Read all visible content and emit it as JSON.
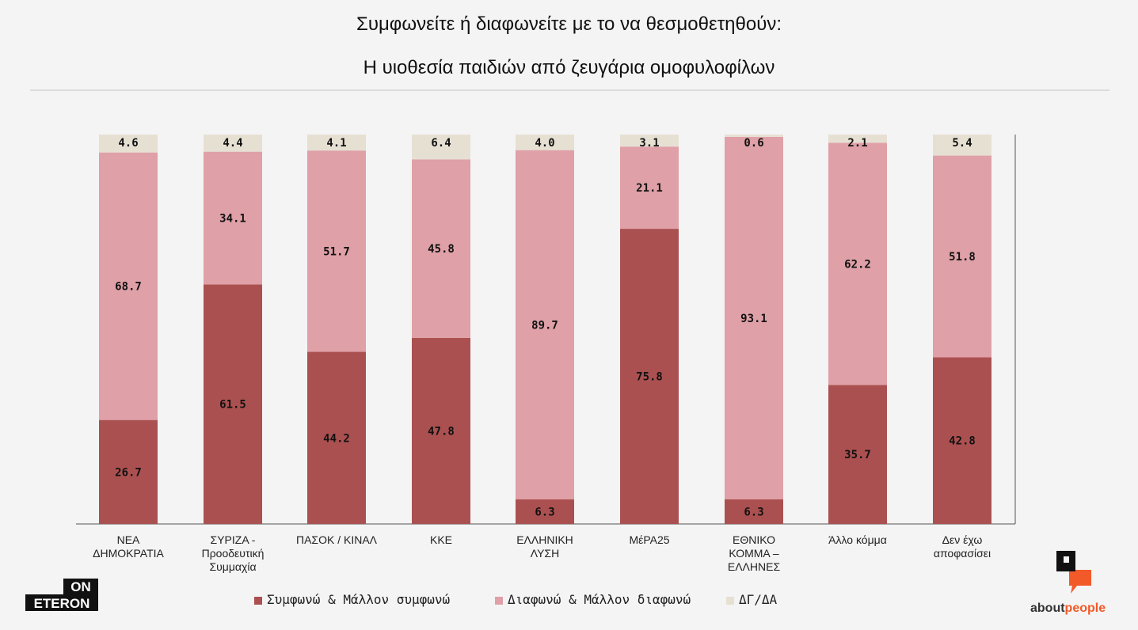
{
  "title_line1": "Συμφωνείτε ή διαφωνείτε με το να θεσμοθετηθούν:",
  "title_line2": "Η υιοθεσία παιδιών από ζευγάρια ομοφυλοφίλων",
  "logo_left": {
    "top": "ON",
    "bottom": "ETERON"
  },
  "logo_right": {
    "word1": "about",
    "word2": "people",
    "accent": "#f25a29"
  },
  "colors": {
    "agree": "#ab5050",
    "disagree": "#dfa0a7",
    "dk": "#e6e0d3"
  },
  "legend": [
    {
      "label": "Συμφωνώ & Μάλλον συμφωνώ",
      "color": "#ab5050"
    },
    {
      "label": "Διαφωνώ & Μάλλον διαφωνώ",
      "color": "#dfa0a7"
    },
    {
      "label": "ΔΓ/ΔΑ",
      "color": "#e6e0d3"
    }
  ],
  "chart_data": {
    "type": "bar",
    "stacked": true,
    "categories": [
      [
        "ΝΕΑ",
        "ΔΗΜΟΚΡΑΤΙΑ"
      ],
      [
        "ΣΥΡΙΖΑ -",
        "Προοδευτική",
        "Συμμαχία"
      ],
      [
        "ΠΑΣΟΚ / ΚΙΝΑΛ"
      ],
      [
        "ΚΚΕ"
      ],
      [
        "ΕΛΛΗΝΙΚΗ",
        "ΛΥΣΗ"
      ],
      [
        "ΜέΡΑ25"
      ],
      [
        "ΕΘΝΙΚΟ",
        "ΚΟΜΜΑ –",
        "ΕΛΛΗΝΕΣ"
      ],
      [
        "Άλλο κόμμα"
      ],
      [
        "Δεν έχω",
        "αποφασίσει"
      ]
    ],
    "series": [
      {
        "name": "Συμφωνώ & Μάλλον συμφωνώ",
        "values": [
          "26.7",
          "61.5",
          "44.2",
          "47.8",
          "6.3",
          "75.8",
          "6.3",
          "35.7",
          "42.8"
        ]
      },
      {
        "name": "Διαφωνώ & Μάλλον διαφωνώ",
        "values": [
          "68.7",
          "34.1",
          "51.7",
          "45.8",
          "89.7",
          "21.1",
          "93.1",
          "62.2",
          "51.8"
        ]
      },
      {
        "name": "ΔΓ/ΔΑ",
        "values": [
          "4.6",
          "4.4",
          "4.1",
          "6.4",
          "4.0",
          "3.1",
          "0.6",
          "2.1",
          "5.4"
        ]
      }
    ],
    "ylim": [
      0,
      100
    ],
    "legend_position": "bottom"
  }
}
